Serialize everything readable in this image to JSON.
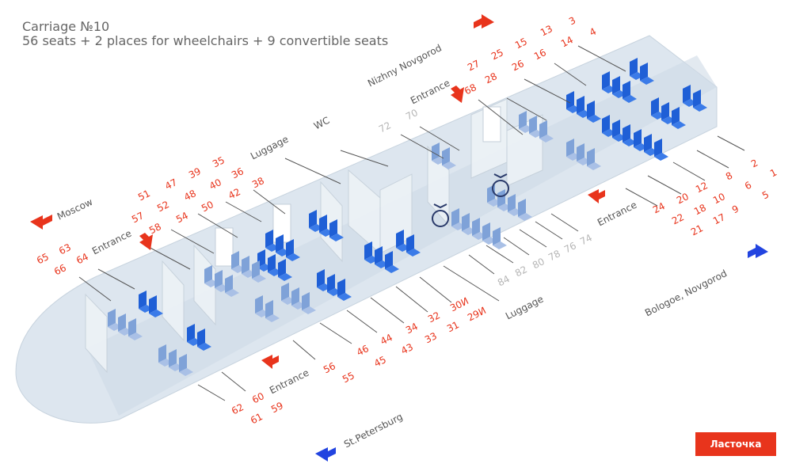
{
  "header": {
    "title": "Carriage №10",
    "subtitle": "56 seats + 2 places for wheelchairs + 9 convertible seats"
  },
  "colors": {
    "red": "#e8341c",
    "blue": "#2244e0",
    "seat": "#1f5fd6",
    "grey_seat": "#7fa2d8",
    "hull": "#dfe8f0"
  },
  "directions": {
    "moscow": "Moscow",
    "nizhny": "Nizhny Novgorod",
    "st_petersburg": "St.Petersburg",
    "bologoe": "Bologoe, Novgorod"
  },
  "zones": {
    "entrance": "Entrance",
    "wc": "WC",
    "luggage": "Luggage"
  },
  "seat_labels": {
    "a1": "3",
    "a2": "13",
    "a3": "15",
    "a4": "25",
    "a5": "27",
    "b1": "4",
    "b2": "14",
    "b3": "16",
    "b4": "26",
    "b5": "28",
    "b6": "68",
    "c1": "72",
    "c2": "70",
    "d1": "51",
    "d2": "47",
    "d3": "39",
    "d4": "35",
    "e1": "57",
    "e2": "52",
    "e3": "48",
    "e4": "40",
    "e5": "36",
    "f1": "58",
    "f2": "54",
    "f3": "50",
    "f4": "42",
    "f5": "38",
    "g1": "65",
    "g2": "63",
    "g3": "66",
    "g4": "64",
    "h1": "2",
    "h2": "1",
    "h3": "8",
    "h4": "6",
    "h5": "5",
    "h6": "12",
    "h7": "10",
    "h8": "9",
    "h9": "20",
    "h10": "18",
    "h11": "17",
    "h12": "24",
    "h13": "22",
    "h14": "21",
    "i1": "74",
    "i2": "76",
    "i3": "78",
    "i4": "80",
    "i5": "82",
    "i6": "84",
    "j1": "30И",
    "j2": "29И",
    "j3": "32",
    "j4": "31",
    "j5": "34",
    "j6": "33",
    "j7": "44",
    "j8": "43",
    "j9": "46",
    "j10": "45",
    "k1": "56",
    "k2": "55",
    "k3": "60",
    "k4": "59",
    "k5": "62",
    "k6": "61"
  },
  "brand": "Ласточка"
}
